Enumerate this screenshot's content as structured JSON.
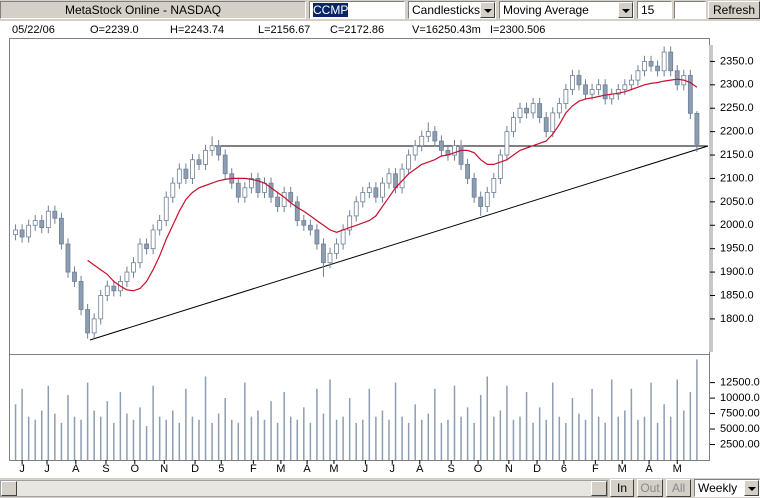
{
  "window": {
    "title": "MetaStock Online - NASDAQ",
    "symbol": "CCMP",
    "chart_style": "Candlesticks",
    "indicator": "Moving Average",
    "period": "15",
    "refresh": "Refresh"
  },
  "info": [
    "05/22/06",
    "O=2239.0",
    "H=2243.74",
    "L=2156.67",
    "C=2172.86",
    "V=16250.43m",
    "I=2300.506"
  ],
  "chart_data": {
    "type": "candlestick",
    "xlim": [
      -1,
      106
    ],
    "xticks": [
      {
        "value": 1.0,
        "label": "J"
      },
      {
        "value": 4.8,
        "label": "J"
      },
      {
        "value": 9.2,
        "label": "A"
      },
      {
        "value": 13.8,
        "label": "S"
      },
      {
        "value": 18.2,
        "label": "O"
      },
      {
        "value": 22.7,
        "label": "N"
      },
      {
        "value": 27.4,
        "label": "D"
      },
      {
        "value": 31.4,
        "label": "5"
      },
      {
        "value": 36.3,
        "label": "F"
      },
      {
        "value": 40.5,
        "label": "M"
      },
      {
        "value": 44.5,
        "label": "A"
      },
      {
        "value": 48.6,
        "label": "M"
      },
      {
        "value": 53.4,
        "label": "J"
      },
      {
        "value": 57.5,
        "label": "J"
      },
      {
        "value": 61.7,
        "label": "A"
      },
      {
        "value": 66.5,
        "label": "S"
      },
      {
        "value": 70.6,
        "label": "O"
      },
      {
        "value": 75.3,
        "label": "N"
      },
      {
        "value": 79.6,
        "label": "D"
      },
      {
        "value": 83.7,
        "label": "6"
      },
      {
        "value": 88.5,
        "label": "F"
      },
      {
        "value": 92.6,
        "label": "M"
      },
      {
        "value": 96.7,
        "label": "A"
      },
      {
        "value": 101.0,
        "label": "M"
      }
    ],
    "ylim": [
      1725,
      2400
    ],
    "yticks": [
      {
        "value": 1800,
        "label": "1800.0"
      },
      {
        "value": 1850,
        "label": "1850.0"
      },
      {
        "value": 1900,
        "label": "1900.0"
      },
      {
        "value": 1950,
        "label": "1950.0"
      },
      {
        "value": 2000,
        "label": "2000.0"
      },
      {
        "value": 2050,
        "label": "2050.0"
      },
      {
        "value": 2100,
        "label": "2100.0"
      },
      {
        "value": 2150,
        "label": "2150.0"
      },
      {
        "value": 2200,
        "label": "2200.0"
      },
      {
        "value": 2250,
        "label": "2250.0"
      },
      {
        "value": 2300,
        "label": "2300.0"
      },
      {
        "value": 2350,
        "label": "2350.0"
      }
    ],
    "up_color": "#ffffff",
    "down_color": "#8d9db2",
    "wick_color": "#6f8096",
    "open": [
      1980,
      1990,
      1975,
      2000,
      2010,
      1995,
      2030,
      2015,
      1960,
      1900,
      1880,
      1820,
      1770,
      1800,
      1850,
      1870,
      1860,
      1880,
      1900,
      1920,
      1960,
      1950,
      1990,
      2010,
      2060,
      2090,
      2120,
      2100,
      2140,
      2130,
      2160,
      2170,
      2150,
      2110,
      2090,
      2060,
      2080,
      2100,
      2070,
      2090,
      2060,
      2040,
      2070,
      2050,
      2010,
      2000,
      1990,
      1960,
      1920,
      1940,
      1960,
      1990,
      2020,
      2050,
      2070,
      2080,
      2060,
      2090,
      2110,
      2080,
      2120,
      2150,
      2170,
      2190,
      2200,
      2180,
      2160,
      2150,
      2170,
      2130,
      2100,
      2060,
      2040,
      2070,
      2100,
      2150,
      2200,
      2230,
      2250,
      2240,
      2260,
      2230,
      2200,
      2240,
      2260,
      2290,
      2320,
      2300,
      2280,
      2290,
      2300,
      2270,
      2280,
      2290,
      2300,
      2310,
      2330,
      2350,
      2340,
      2330,
      2370,
      2330,
      2300,
      2320,
      2239
    ],
    "high": [
      2002,
      2002,
      2012,
      2022,
      2022,
      2042,
      2042,
      2027,
      1972,
      1912,
      1892,
      1832,
      1812,
      1862,
      1882,
      1882,
      1892,
      1912,
      1932,
      1972,
      1972,
      2002,
      2022,
      2072,
      2102,
      2132,
      2132,
      2152,
      2152,
      2172,
      2190,
      2182,
      2162,
      2122,
      2102,
      2092,
      2112,
      2112,
      2102,
      2102,
      2072,
      2082,
      2082,
      2062,
      2022,
      2012,
      2002,
      1972,
      1952,
      1972,
      2002,
      2032,
      2062,
      2082,
      2092,
      2092,
      2102,
      2122,
      2122,
      2132,
      2162,
      2182,
      2202,
      2220,
      2212,
      2192,
      2172,
      2182,
      2182,
      2142,
      2112,
      2072,
      2082,
      2112,
      2162,
      2212,
      2242,
      2262,
      2262,
      2272,
      2272,
      2242,
      2252,
      2272,
      2302,
      2332,
      2332,
      2312,
      2302,
      2312,
      2312,
      2292,
      2302,
      2312,
      2322,
      2342,
      2362,
      2362,
      2352,
      2382,
      2382,
      2342,
      2332,
      2332,
      2243.74
    ],
    "low": [
      1968,
      1963,
      1963,
      1988,
      1983,
      1983,
      2003,
      1948,
      1888,
      1868,
      1808,
      1758,
      1758,
      1788,
      1838,
      1848,
      1848,
      1868,
      1888,
      1908,
      1938,
      1938,
      1978,
      1998,
      2048,
      2078,
      2088,
      2088,
      2118,
      2118,
      2148,
      2138,
      2098,
      2078,
      2048,
      2048,
      2068,
      2058,
      2058,
      2048,
      2028,
      2028,
      2038,
      1998,
      1988,
      1978,
      1948,
      1890,
      1908,
      1928,
      1948,
      1978,
      2008,
      2038,
      2058,
      2048,
      2048,
      2078,
      2068,
      2068,
      2108,
      2138,
      2158,
      2178,
      2168,
      2148,
      2138,
      2138,
      2118,
      2088,
      2048,
      2020,
      2028,
      2058,
      2088,
      2138,
      2188,
      2218,
      2228,
      2228,
      2218,
      2188,
      2188,
      2228,
      2248,
      2278,
      2288,
      2268,
      2268,
      2278,
      2258,
      2258,
      2268,
      2278,
      2288,
      2298,
      2318,
      2328,
      2318,
      2318,
      2318,
      2288,
      2288,
      2227,
      2156.67
    ],
    "close": [
      1990,
      1975,
      2000,
      2010,
      1995,
      2030,
      2015,
      1960,
      1900,
      1880,
      1820,
      1770,
      1800,
      1850,
      1870,
      1860,
      1880,
      1900,
      1920,
      1960,
      1950,
      1990,
      2010,
      2060,
      2090,
      2120,
      2100,
      2140,
      2130,
      2160,
      2170,
      2150,
      2110,
      2090,
      2060,
      2080,
      2100,
      2070,
      2090,
      2060,
      2040,
      2070,
      2050,
      2010,
      2000,
      1990,
      1960,
      1920,
      1940,
      1960,
      1990,
      2020,
      2050,
      2070,
      2080,
      2060,
      2090,
      2110,
      2080,
      2120,
      2150,
      2170,
      2190,
      2200,
      2180,
      2160,
      2150,
      2170,
      2130,
      2100,
      2060,
      2040,
      2070,
      2100,
      2150,
      2200,
      2230,
      2250,
      2240,
      2260,
      2230,
      2200,
      2240,
      2260,
      2290,
      2320,
      2300,
      2280,
      2290,
      2300,
      2270,
      2280,
      2290,
      2300,
      2310,
      2330,
      2350,
      2340,
      2330,
      2370,
      2330,
      2300,
      2320,
      2239,
      2172.86
    ],
    "ma": {
      "color": "#c8102e",
      "values": [
        null,
        null,
        null,
        null,
        null,
        null,
        null,
        null,
        null,
        null,
        null,
        1925,
        1915,
        1905,
        1895,
        1880,
        1870,
        1862,
        1860,
        1865,
        1880,
        1905,
        1935,
        1970,
        2000,
        2030,
        2055,
        2070,
        2080,
        2085,
        2090,
        2095,
        2098,
        2100,
        2100,
        2100,
        2098,
        2095,
        2090,
        2080,
        2070,
        2060,
        2048,
        2038,
        2030,
        2020,
        2010,
        2000,
        1990,
        1985,
        1990,
        1995,
        2000,
        2005,
        2010,
        2020,
        2040,
        2060,
        2080,
        2095,
        2110,
        2120,
        2130,
        2135,
        2140,
        2148,
        2150,
        2155,
        2160,
        2160,
        2155,
        2140,
        2130,
        2130,
        2135,
        2140,
        2150,
        2160,
        2165,
        2170,
        2175,
        2180,
        2195,
        2215,
        2240,
        2255,
        2265,
        2270,
        2272,
        2275,
        2278,
        2280,
        2282,
        2285,
        2290,
        2295,
        2300,
        2303,
        2305,
        2308,
        2310,
        2312,
        2310,
        2305,
        2295
      ]
    },
    "volume": {
      "color": "#8d9db2",
      "ylim": [
        0,
        16800
      ],
      "yticks": [
        {
          "value": 2500,
          "label": "2500.00"
        },
        {
          "value": 5000,
          "label": "5000.00"
        },
        {
          "value": 7500,
          "label": "7500.00"
        },
        {
          "value": 10000,
          "label": "10000.00"
        },
        {
          "value": 12500,
          "label": "12500.00"
        }
      ],
      "values": [
        9000,
        11500,
        7000,
        6500,
        8000,
        12000,
        7500,
        6000,
        10500,
        7000,
        6500,
        12500,
        8000,
        7000,
        9500,
        6000,
        11000,
        7500,
        6500,
        8500,
        5500,
        12000,
        7000,
        6500,
        8000,
        6000,
        11500,
        7000,
        6500,
        13500,
        6000,
        7500,
        10000,
        6500,
        6000,
        12500,
        7000,
        8000,
        6500,
        9500,
        6000,
        11000,
        7000,
        6500,
        8500,
        6000,
        11500,
        7500,
        13000,
        6500,
        7000,
        10000,
        6000,
        6500,
        11500,
        7000,
        8000,
        6500,
        12500,
        7000,
        6000,
        9000,
        6500,
        7500,
        11500,
        6000,
        6500,
        12000,
        7000,
        8500,
        6000,
        10500,
        13500,
        7000,
        8000,
        12000,
        6500,
        7000,
        11000,
        6000,
        8500,
        6500,
        12500,
        7000,
        6000,
        10000,
        7500,
        6500,
        11500,
        7000,
        6000,
        13000,
        7000,
        8000,
        11500,
        6500,
        7000,
        12500,
        6000,
        9000,
        7000,
        13000,
        8000,
        11000,
        16250.43
      ]
    }
  },
  "nav": {
    "in": "In",
    "out": "Out",
    "all": "All",
    "interval": "Weekly"
  }
}
